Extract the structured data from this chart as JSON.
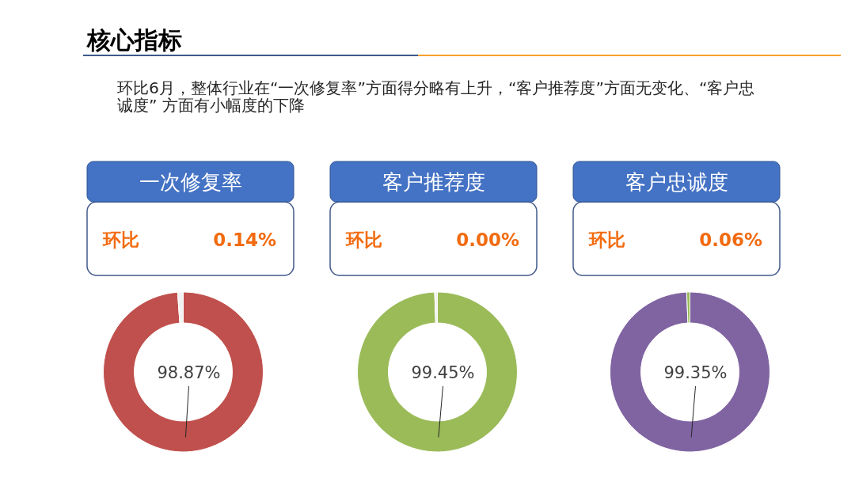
{
  "chart_data": [
    {
      "type": "other",
      "title": "核心指标",
      "annotations": [
        "环比6月，整体行业在“一次修复率”方面得分略有上升，“客户推荐度”方面无变化、“客户忠诚度” 方面有小幅度的下降"
      ]
    },
    {
      "type": "donut",
      "title": "一次修复率",
      "categories": [
        null,
        null
      ],
      "values": [
        98.87,
        1.13
      ],
      "colors": [
        "#c0504d",
        "#f2f2f2"
      ],
      "value_labels": [
        "98.87%",
        null
      ],
      "annotations": [
        "环比",
        "0.14%"
      ]
    },
    {
      "type": "donut",
      "title": "客户推荐度",
      "categories": [
        null,
        null
      ],
      "values": [
        99.45,
        0.55
      ],
      "colors": [
        "#9bbb59",
        "#f2f2f2"
      ],
      "value_labels": [
        "99.45%",
        null
      ],
      "annotations": [
        "环比",
        "0.00%"
      ]
    },
    {
      "type": "donut",
      "title": "客户忠诚度",
      "categories": [
        null,
        null
      ],
      "values": [
        99.35,
        0.65
      ],
      "colors": [
        "#8064a2",
        "#9bbb59"
      ],
      "value_labels": [
        "99.35%",
        null
      ],
      "annotations": [
        "环比",
        "0.06%"
      ]
    }
  ]
}
